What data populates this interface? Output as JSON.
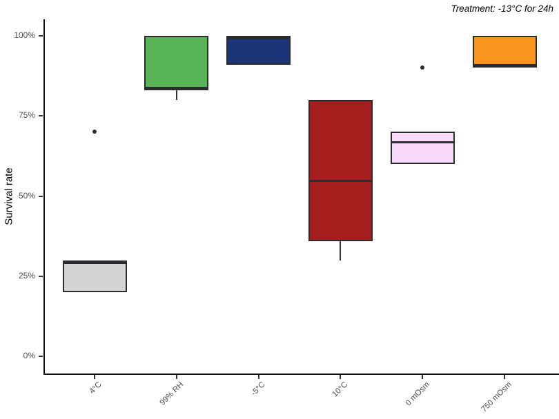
{
  "title": "Treatment: -13°C for 24h",
  "chart_data": {
    "type": "boxplot",
    "title": "Treatment: -13°C for 24h",
    "xlabel": "",
    "ylabel": "Survival rate",
    "ylim": [
      0,
      100
    ],
    "y_ticks": [
      0,
      25,
      50,
      75,
      100
    ],
    "y_tick_labels": [
      "0%",
      "25%",
      "50%",
      "75%",
      "100%"
    ],
    "categories": [
      "4°C",
      "99% RH",
      "-5°C",
      "10°C",
      "0 mOsm",
      "750 mOsm"
    ],
    "series": [
      {
        "category": "4°C",
        "fill": "#D4D4D4",
        "q1": 20,
        "median": 30,
        "q3": 30,
        "whisker_low": null,
        "whisker_high": null,
        "outliers": [
          70
        ]
      },
      {
        "category": "99% RH",
        "fill": "#58B658",
        "q1": 83,
        "median": 83,
        "q3": 100,
        "whisker_low": 80,
        "whisker_high": null,
        "outliers": []
      },
      {
        "category": "-5°C",
        "fill": "#1C3478",
        "q1": 91,
        "median": 100,
        "q3": 100,
        "whisker_low": null,
        "whisker_high": null,
        "outliers": []
      },
      {
        "category": "10°C",
        "fill": "#A41E1E",
        "q1": 36,
        "median": 55,
        "q3": 80,
        "whisker_low": 30,
        "whisker_high": null,
        "outliers": []
      },
      {
        "category": "0 mOsm",
        "fill": "#F8DBF8",
        "q1": 60,
        "median": 67,
        "q3": 70,
        "whisker_low": null,
        "whisker_high": null,
        "outliers": [
          90
        ]
      },
      {
        "category": "750 mOsm",
        "fill": "#F9941F",
        "q1": 90,
        "median": 90,
        "q3": 100,
        "whisker_low": null,
        "whisker_high": null,
        "outliers": []
      }
    ],
    "legend": "none",
    "grid": "off",
    "colors": {
      "background": "#FFFFFF",
      "axis_line": "#101010",
      "tick_text": "#4D4D4D",
      "box_border": "#2B2B2B",
      "median_line": "#2B2B33",
      "outlier_point": "#2E2E2E"
    }
  }
}
